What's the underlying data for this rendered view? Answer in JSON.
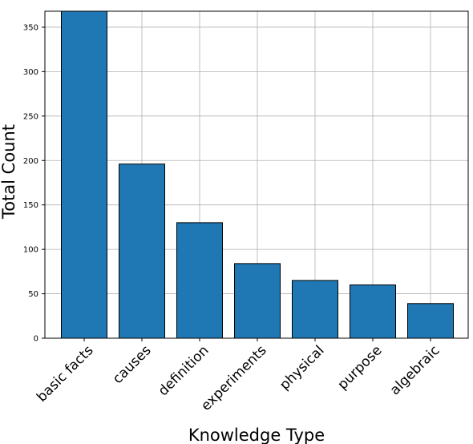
{
  "chart_data": {
    "type": "bar",
    "xlabel": "Knowledge Type",
    "ylabel": "Total Count",
    "categories": [
      "basic facts",
      "causes",
      "definition",
      "experiments",
      "physical",
      "purpose",
      "algebraic"
    ],
    "values": [
      368,
      196,
      130,
      84,
      65,
      60,
      39
    ],
    "yticks": [
      0,
      50,
      100,
      150,
      200,
      250,
      300,
      350
    ],
    "ylim": [
      0,
      368
    ],
    "grid": true,
    "bar_color": "#1f77b4",
    "edge_color": "#000000",
    "grid_color": "#b0b0b0"
  }
}
